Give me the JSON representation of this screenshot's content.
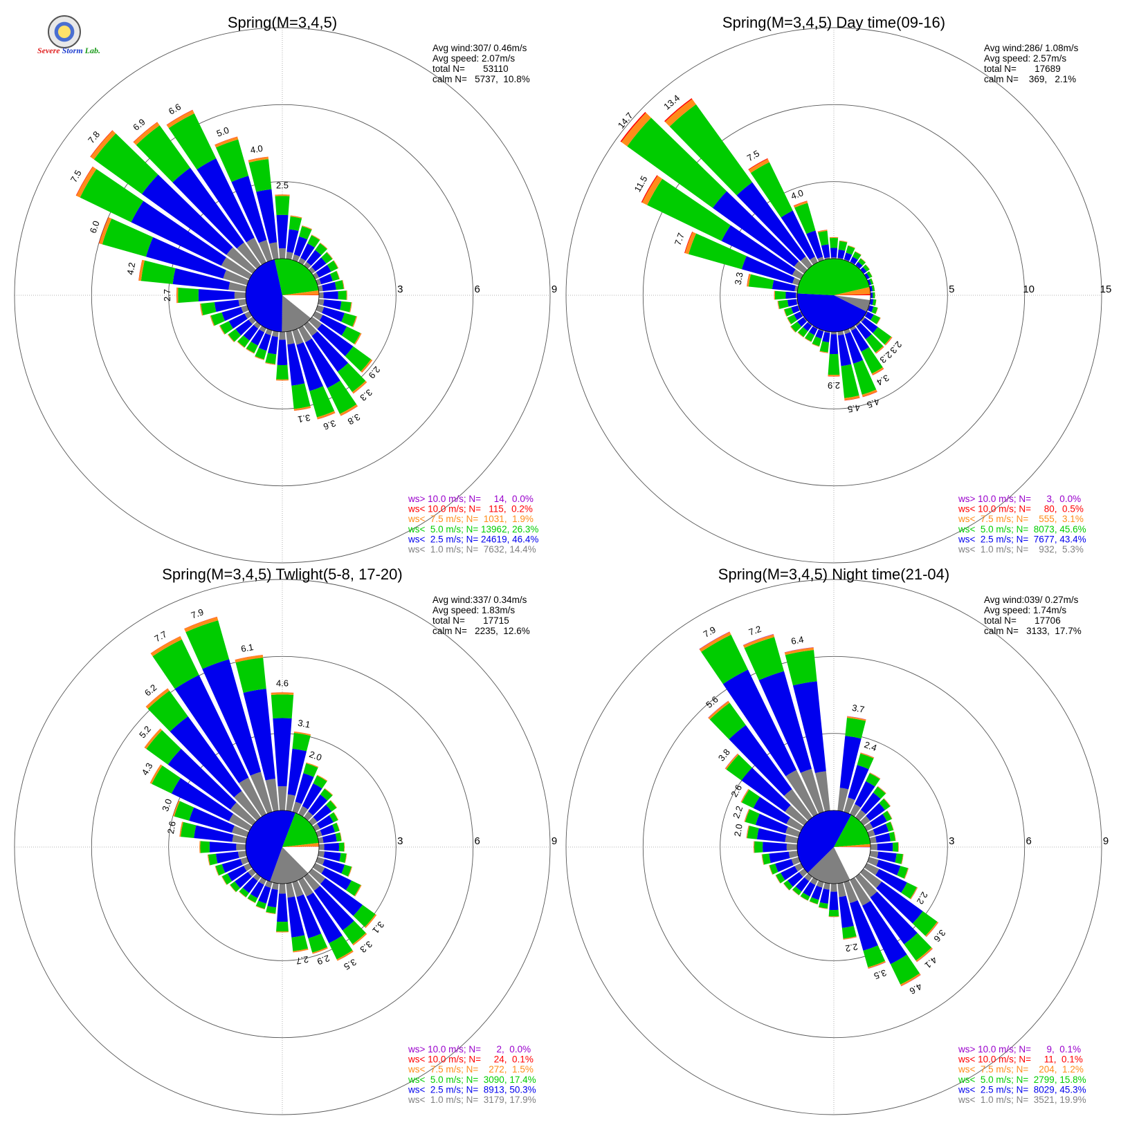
{
  "logo": {
    "line1": "Severe",
    "line2": "Storm",
    "line3": "Lab."
  },
  "colors": {
    "calm_white": "#ffffff",
    "lt1": "#808080",
    "lt2_5": "#0000ee",
    "lt5": "#00cc00",
    "lt7_5": "#ff8c1a",
    "lt10": "#ff0000",
    "gt10": "#9900cc"
  },
  "chart_data": [
    {
      "type": "wind_rose",
      "title": "Spring(M=3,4,5)",
      "rlim": [
        0,
        9
      ],
      "ring_labels": [
        "3",
        "6",
        "9"
      ],
      "stats": {
        "avg_wind": "Avg wind:307/ 0.46m/s",
        "avg_speed": "Avg speed: 2.07m/s",
        "total": "total N=       53110",
        "calm": "calm N=   5737,  10.8%"
      },
      "legend": [
        {
          "text": "ws> 10.0 m/s; N=     14,  0.0%",
          "color": "#9900cc"
        },
        {
          "text": "ws< 10.0 m/s; N=   115,  0.2%",
          "color": "#ff0000"
        },
        {
          "text": "ws<  7.5 m/s; N=  1031,  1.9%",
          "color": "#ff8c1a"
        },
        {
          "text": "ws<  5.0 m/s; N= 13962, 26.3%",
          "color": "#00cc00"
        },
        {
          "text": "ws<  2.5 m/s; N= 24619, 46.4%",
          "color": "#0000ee"
        },
        {
          "text": "ws<  1.0 m/s; N=  7632, 14.4%",
          "color": "#808080"
        }
      ],
      "center_pie": [
        10.8,
        14.4,
        46.4,
        26.3,
        1.9,
        0.2,
        0.0
      ],
      "petals": [
        {
          "dir": 270,
          "total": 2.7,
          "label": "2.7"
        },
        {
          "dir": 280,
          "total": 4.2,
          "label": "4.2"
        },
        {
          "dir": 290,
          "total": 6.0,
          "label": "6.0"
        },
        {
          "dir": 300,
          "total": 7.5,
          "label": "7.5"
        },
        {
          "dir": 310,
          "total": 7.8,
          "label": "7.8"
        },
        {
          "dir": 320,
          "total": 6.9,
          "label": "6.9"
        },
        {
          "dir": 330,
          "total": 6.6,
          "label": "6.6"
        },
        {
          "dir": 340,
          "total": 5.0,
          "label": "5.0"
        },
        {
          "dir": 350,
          "total": 4.0,
          "label": "4.0"
        },
        {
          "dir": 0,
          "total": 2.5,
          "label": "2.5"
        },
        {
          "dir": 10,
          "total": 1.7,
          "label": ""
        },
        {
          "dir": 20,
          "total": 1.4,
          "label": ""
        },
        {
          "dir": 30,
          "total": 1.2,
          "label": ""
        },
        {
          "dir": 40,
          "total": 1.1,
          "label": ""
        },
        {
          "dir": 50,
          "total": 1.0,
          "label": ""
        },
        {
          "dir": 60,
          "total": 1.0,
          "label": ""
        },
        {
          "dir": 70,
          "total": 0.9,
          "label": ""
        },
        {
          "dir": 80,
          "total": 1.0,
          "label": ""
        },
        {
          "dir": 90,
          "total": 1.1,
          "label": ""
        },
        {
          "dir": 100,
          "total": 1.3,
          "label": ""
        },
        {
          "dir": 110,
          "total": 1.6,
          "label": ""
        },
        {
          "dir": 120,
          "total": 2.0,
          "label": ""
        },
        {
          "dir": 130,
          "total": 2.9,
          "label": "2.9"
        },
        {
          "dir": 140,
          "total": 3.3,
          "label": "3.3"
        },
        {
          "dir": 150,
          "total": 3.8,
          "label": "3.8"
        },
        {
          "dir": 160,
          "total": 3.6,
          "label": "3.6"
        },
        {
          "dir": 170,
          "total": 3.1,
          "label": "3.1"
        },
        {
          "dir": 180,
          "total": 1.9,
          "label": ""
        },
        {
          "dir": 190,
          "total": 1.3,
          "label": ""
        },
        {
          "dir": 200,
          "total": 1.2,
          "label": ""
        },
        {
          "dir": 210,
          "total": 1.1,
          "label": ""
        },
        {
          "dir": 220,
          "total": 1.1,
          "label": ""
        },
        {
          "dir": 230,
          "total": 1.2,
          "label": ""
        },
        {
          "dir": 240,
          "total": 1.3,
          "label": ""
        },
        {
          "dir": 250,
          "total": 1.5,
          "label": ""
        },
        {
          "dir": 260,
          "total": 1.8,
          "label": ""
        }
      ]
    },
    {
      "type": "wind_rose",
      "title": "Spring(M=3,4,5) Day time(09-16)",
      "rlim": [
        0,
        15
      ],
      "ring_labels": [
        "5",
        "10",
        "15"
      ],
      "stats": {
        "avg_wind": "Avg wind:286/ 1.08m/s",
        "avg_speed": "Avg speed: 2.57m/s",
        "total": "total N=       17689",
        "calm": "calm N=    369,   2.1%"
      },
      "legend": [
        {
          "text": "ws> 10.0 m/s; N=      3,  0.0%",
          "color": "#9900cc"
        },
        {
          "text": "ws< 10.0 m/s; N=     80,  0.5%",
          "color": "#ff0000"
        },
        {
          "text": "ws<  7.5 m/s; N=    555,  3.1%",
          "color": "#ff8c1a"
        },
        {
          "text": "ws<  5.0 m/s; N=  8073, 45.6%",
          "color": "#00cc00"
        },
        {
          "text": "ws<  2.5 m/s; N=  7677, 43.4%",
          "color": "#0000ee"
        },
        {
          "text": "ws<  1.0 m/s; N=    932,  5.3%",
          "color": "#808080"
        }
      ],
      "center_pie": [
        2.1,
        5.3,
        43.4,
        45.6,
        3.1,
        0.5,
        0.0
      ],
      "petals": [
        {
          "dir": 270,
          "total": 1.5,
          "label": ""
        },
        {
          "dir": 280,
          "total": 3.3,
          "label": "3.3"
        },
        {
          "dir": 290,
          "total": 7.7,
          "label": "7.7"
        },
        {
          "dir": 300,
          "total": 11.5,
          "label": "11.5"
        },
        {
          "dir": 310,
          "total": 14.7,
          "label": "14.7"
        },
        {
          "dir": 320,
          "total": 13.4,
          "label": "13.4"
        },
        {
          "dir": 330,
          "total": 7.5,
          "label": "7.5"
        },
        {
          "dir": 340,
          "total": 4.0,
          "label": "4.0"
        },
        {
          "dir": 350,
          "total": 1.9,
          "label": ""
        },
        {
          "dir": 0,
          "total": 1.4,
          "label": ""
        },
        {
          "dir": 10,
          "total": 1.2,
          "label": ""
        },
        {
          "dir": 20,
          "total": 1.0,
          "label": ""
        },
        {
          "dir": 30,
          "total": 0.8,
          "label": ""
        },
        {
          "dir": 40,
          "total": 0.6,
          "label": ""
        },
        {
          "dir": 50,
          "total": 0.5,
          "label": ""
        },
        {
          "dir": 60,
          "total": 0.4,
          "label": ""
        },
        {
          "dir": 70,
          "total": 0.3,
          "label": ""
        },
        {
          "dir": 80,
          "total": 0.3,
          "label": ""
        },
        {
          "dir": 90,
          "total": 0.3,
          "label": ""
        },
        {
          "dir": 100,
          "total": 0.4,
          "label": ""
        },
        {
          "dir": 110,
          "total": 0.6,
          "label": ""
        },
        {
          "dir": 120,
          "total": 1.0,
          "label": ""
        },
        {
          "dir": 130,
          "total": 2.3,
          "label": "2.3"
        },
        {
          "dir": 140,
          "total": 2.3,
          "label": "2.3"
        },
        {
          "dir": 150,
          "total": 3.4,
          "label": "3.4"
        },
        {
          "dir": 160,
          "total": 4.5,
          "label": "4.5"
        },
        {
          "dir": 170,
          "total": 4.5,
          "label": "4.5"
        },
        {
          "dir": 180,
          "total": 2.9,
          "label": "2.9"
        },
        {
          "dir": 190,
          "total": 1.4,
          "label": ""
        },
        {
          "dir": 200,
          "total": 1.1,
          "label": ""
        },
        {
          "dir": 210,
          "total": 1.0,
          "label": ""
        },
        {
          "dir": 220,
          "total": 1.0,
          "label": ""
        },
        {
          "dir": 230,
          "total": 1.1,
          "label": ""
        },
        {
          "dir": 240,
          "total": 1.0,
          "label": ""
        },
        {
          "dir": 250,
          "total": 1.0,
          "label": ""
        },
        {
          "dir": 260,
          "total": 1.3,
          "label": ""
        }
      ]
    },
    {
      "type": "wind_rose",
      "title": "Spring(M=3,4,5) Twlight(5-8, 17-20)",
      "rlim": [
        0,
        9
      ],
      "ring_labels": [
        "3",
        "6",
        "9"
      ],
      "stats": {
        "avg_wind": "Avg wind:337/ 0.34m/s",
        "avg_speed": "Avg speed: 1.83m/s",
        "total": "total N=       17715",
        "calm": "calm N=   2235,  12.6%"
      },
      "legend": [
        {
          "text": "ws> 10.0 m/s; N=      2,  0.0%",
          "color": "#9900cc"
        },
        {
          "text": "ws< 10.0 m/s; N=     24,  0.1%",
          "color": "#ff0000"
        },
        {
          "text": "ws<  7.5 m/s; N=    272,  1.5%",
          "color": "#ff8c1a"
        },
        {
          "text": "ws<  5.0 m/s; N=  3090, 17.4%",
          "color": "#00cc00"
        },
        {
          "text": "ws<  2.5 m/s; N=  8913, 50.3%",
          "color": "#0000ee"
        },
        {
          "text": "ws<  1.0 m/s; N=  3179, 17.9%",
          "color": "#808080"
        }
      ],
      "center_pie": [
        12.6,
        17.9,
        50.3,
        17.4,
        1.5,
        0.1,
        0.0
      ],
      "petals": [
        {
          "dir": 270,
          "total": 1.8,
          "label": ""
        },
        {
          "dir": 280,
          "total": 2.6,
          "label": "2.6"
        },
        {
          "dir": 290,
          "total": 3.0,
          "label": "3.0"
        },
        {
          "dir": 300,
          "total": 4.3,
          "label": "4.3"
        },
        {
          "dir": 310,
          "total": 5.2,
          "label": "5.2"
        },
        {
          "dir": 320,
          "total": 6.2,
          "label": "6.2"
        },
        {
          "dir": 330,
          "total": 7.7,
          "label": "7.7"
        },
        {
          "dir": 340,
          "total": 7.9,
          "label": "7.9"
        },
        {
          "dir": 350,
          "total": 6.1,
          "label": "6.1"
        },
        {
          "dir": 0,
          "total": 4.6,
          "label": "4.6"
        },
        {
          "dir": 10,
          "total": 3.1,
          "label": "3.1"
        },
        {
          "dir": 20,
          "total": 2.0,
          "label": "2.0"
        },
        {
          "dir": 30,
          "total": 1.7,
          "label": ""
        },
        {
          "dir": 40,
          "total": 1.4,
          "label": ""
        },
        {
          "dir": 50,
          "total": 1.2,
          "label": ""
        },
        {
          "dir": 60,
          "total": 1.0,
          "label": ""
        },
        {
          "dir": 70,
          "total": 0.9,
          "label": ""
        },
        {
          "dir": 80,
          "total": 0.9,
          "label": ""
        },
        {
          "dir": 90,
          "total": 1.0,
          "label": ""
        },
        {
          "dir": 100,
          "total": 1.1,
          "label": ""
        },
        {
          "dir": 110,
          "total": 1.4,
          "label": ""
        },
        {
          "dir": 120,
          "total": 2.0,
          "label": ""
        },
        {
          "dir": 130,
          "total": 3.1,
          "label": "3.1"
        },
        {
          "dir": 140,
          "total": 3.3,
          "label": "3.3"
        },
        {
          "dir": 150,
          "total": 3.5,
          "label": "3.5"
        },
        {
          "dir": 160,
          "total": 2.9,
          "label": "2.9"
        },
        {
          "dir": 170,
          "total": 2.7,
          "label": "2.7"
        },
        {
          "dir": 180,
          "total": 1.9,
          "label": ""
        },
        {
          "dir": 190,
          "total": 1.2,
          "label": ""
        },
        {
          "dir": 200,
          "total": 1.1,
          "label": ""
        },
        {
          "dir": 210,
          "total": 1.0,
          "label": ""
        },
        {
          "dir": 220,
          "total": 1.0,
          "label": ""
        },
        {
          "dir": 230,
          "total": 1.1,
          "label": ""
        },
        {
          "dir": 240,
          "total": 1.2,
          "label": ""
        },
        {
          "dir": 250,
          "total": 1.3,
          "label": ""
        },
        {
          "dir": 260,
          "total": 1.5,
          "label": ""
        }
      ]
    },
    {
      "type": "wind_rose",
      "title": "Spring(M=3,4,5) Night time(21-04)",
      "rlim": [
        0,
        9
      ],
      "ring_labels": [
        "3",
        "6",
        "9"
      ],
      "stats": {
        "avg_wind": "Avg wind:039/ 0.27m/s",
        "avg_speed": "Avg speed: 1.74m/s",
        "total": "total N=       17706",
        "calm": "calm N=   3133,  17.7%"
      },
      "legend": [
        {
          "text": "ws> 10.0 m/s; N=      9,  0.1%",
          "color": "#9900cc"
        },
        {
          "text": "ws< 10.0 m/s; N=     11,  0.1%",
          "color": "#ff0000"
        },
        {
          "text": "ws<  7.5 m/s; N=    204,  1.2%",
          "color": "#ff8c1a"
        },
        {
          "text": "ws<  5.0 m/s; N=  2799, 15.8%",
          "color": "#00cc00"
        },
        {
          "text": "ws<  2.5 m/s; N=  8029, 45.3%",
          "color": "#0000ee"
        },
        {
          "text": "ws<  1.0 m/s; N=  3521, 19.9%",
          "color": "#808080"
        }
      ],
      "center_pie": [
        17.7,
        19.9,
        45.3,
        15.8,
        1.2,
        0.1,
        0.1
      ],
      "petals": [
        {
          "dir": 270,
          "total": 1.7,
          "label": ""
        },
        {
          "dir": 280,
          "total": 2.0,
          "label": "2.0"
        },
        {
          "dir": 290,
          "total": 2.2,
          "label": "2.2"
        },
        {
          "dir": 300,
          "total": 2.6,
          "label": "2.6"
        },
        {
          "dir": 310,
          "total": 3.8,
          "label": "3.8"
        },
        {
          "dir": 320,
          "total": 5.6,
          "label": "5.6"
        },
        {
          "dir": 330,
          "total": 7.9,
          "label": "7.9"
        },
        {
          "dir": 340,
          "total": 7.2,
          "label": "7.2"
        },
        {
          "dir": 350,
          "total": 6.4,
          "label": "6.4"
        },
        {
          "dir": 10,
          "total": 3.7,
          "label": "3.7"
        },
        {
          "dir": 20,
          "total": 2.4,
          "label": "2.4"
        },
        {
          "dir": 30,
          "total": 1.8,
          "label": ""
        },
        {
          "dir": 40,
          "total": 1.5,
          "label": ""
        },
        {
          "dir": 50,
          "total": 1.3,
          "label": ""
        },
        {
          "dir": 60,
          "total": 1.1,
          "label": ""
        },
        {
          "dir": 70,
          "total": 1.0,
          "label": ""
        },
        {
          "dir": 80,
          "total": 1.0,
          "label": ""
        },
        {
          "dir": 90,
          "total": 1.1,
          "label": ""
        },
        {
          "dir": 100,
          "total": 1.3,
          "label": ""
        },
        {
          "dir": 110,
          "total": 1.6,
          "label": ""
        },
        {
          "dir": 120,
          "total": 2.2,
          "label": "2.2"
        },
        {
          "dir": 130,
          "total": 3.6,
          "label": "3.6"
        },
        {
          "dir": 140,
          "total": 4.1,
          "label": "4.1"
        },
        {
          "dir": 150,
          "total": 4.6,
          "label": "4.6"
        },
        {
          "dir": 160,
          "total": 3.5,
          "label": "3.5"
        },
        {
          "dir": 170,
          "total": 2.2,
          "label": "2.2"
        },
        {
          "dir": 180,
          "total": 1.3,
          "label": ""
        },
        {
          "dir": 190,
          "total": 1.0,
          "label": ""
        },
        {
          "dir": 200,
          "total": 0.9,
          "label": ""
        },
        {
          "dir": 210,
          "total": 0.9,
          "label": ""
        },
        {
          "dir": 220,
          "total": 0.9,
          "label": ""
        },
        {
          "dir": 230,
          "total": 1.0,
          "label": ""
        },
        {
          "dir": 240,
          "total": 1.1,
          "label": ""
        },
        {
          "dir": 250,
          "total": 1.2,
          "label": ""
        },
        {
          "dir": 260,
          "total": 1.4,
          "label": ""
        }
      ]
    }
  ]
}
